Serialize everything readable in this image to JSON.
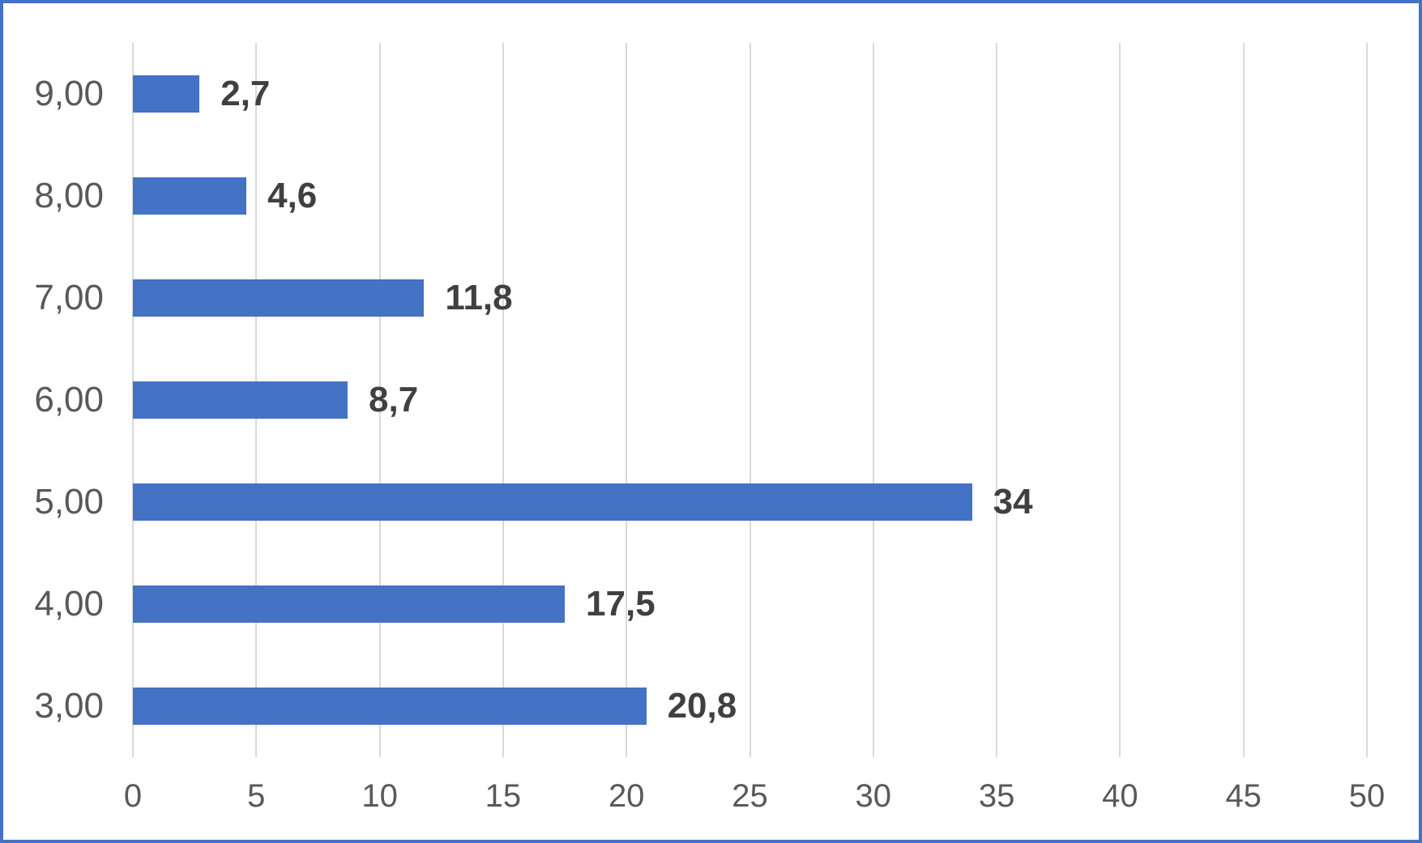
{
  "chart_data": {
    "type": "bar",
    "orientation": "horizontal",
    "title": "",
    "xlabel": "",
    "ylabel": "",
    "categories": [
      "9,00",
      "8,00",
      "7,00",
      "6,00",
      "5,00",
      "4,00",
      "3,00"
    ],
    "values": [
      2.7,
      4.6,
      11.8,
      8.7,
      34,
      17.5,
      20.8
    ],
    "data_labels": [
      "2,7",
      "4,6",
      "11,8",
      "8,7",
      "34",
      "17,5",
      "20,8"
    ],
    "xlim": [
      0,
      50
    ],
    "x_ticks": [
      0,
      5,
      10,
      15,
      20,
      25,
      30,
      35,
      40,
      45,
      50
    ],
    "x_tick_labels": [
      "0",
      "5",
      "10",
      "15",
      "20",
      "25",
      "30",
      "35",
      "40",
      "45",
      "50"
    ],
    "grid": true,
    "legend": "none",
    "colors": {
      "bar": "#4472C4",
      "frame_border": "#4472C4",
      "gridline": "#D9D9D9",
      "axis_text": "#595959",
      "data_label_text": "#404040",
      "background": "#FFFFFF"
    }
  }
}
